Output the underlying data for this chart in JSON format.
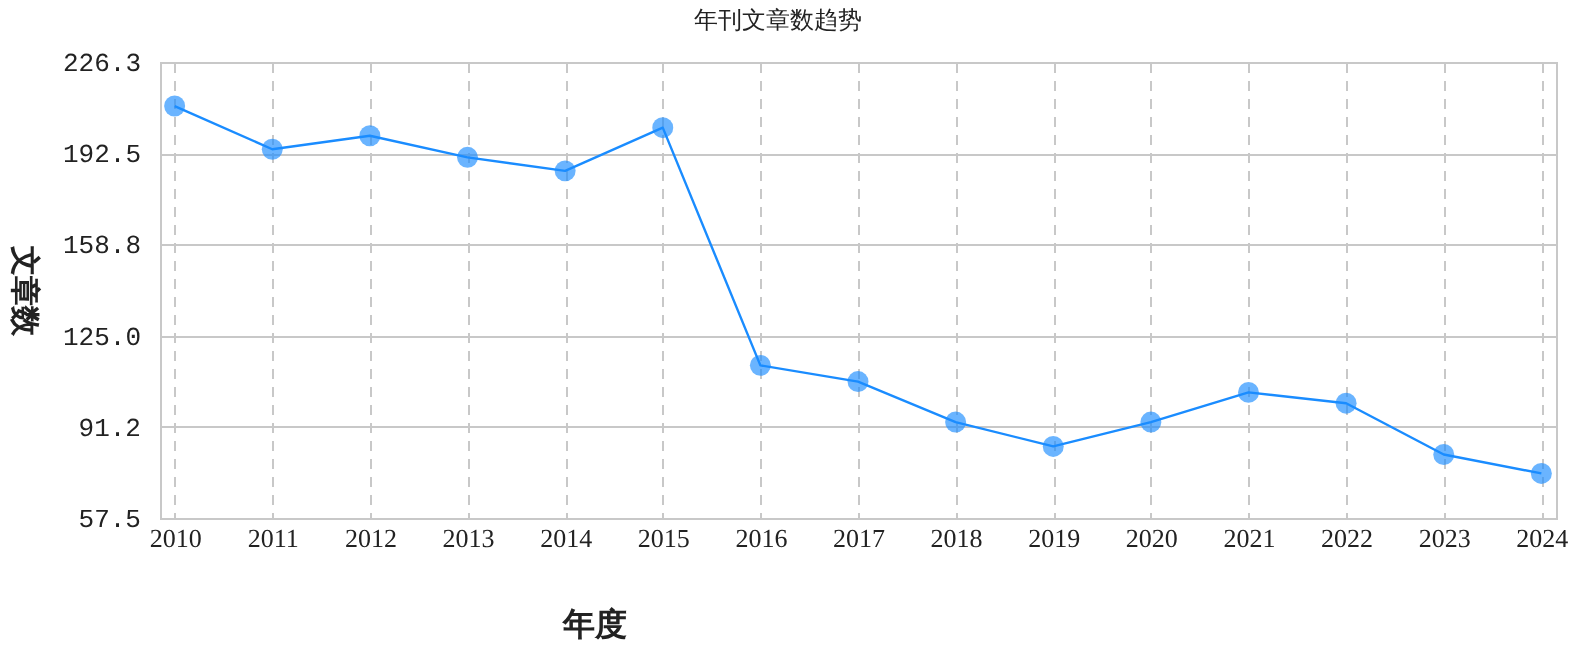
{
  "chart_data": {
    "type": "line",
    "title": "年刊文章数趋势",
    "xlabel": "年度",
    "ylabel": "文章数",
    "categories": [
      "2010",
      "2011",
      "2012",
      "2013",
      "2014",
      "2015",
      "2016",
      "2017",
      "2018",
      "2019",
      "2020",
      "2021",
      "2022",
      "2023",
      "2024"
    ],
    "series": [
      {
        "color": "#1a8cff",
        "values": [
          210,
          194,
          199,
          191,
          186,
          202,
          114,
          108,
          93,
          84,
          93,
          104,
          100,
          81,
          74
        ]
      }
    ],
    "ylim": [
      57.5,
      226.3
    ],
    "yticks": [
      57.5,
      91.2,
      {
        "value": 125,
        "label": "125.0"
      },
      158.8,
      192.5,
      226.3
    ],
    "grid": true,
    "marker": "circle",
    "line_style": "solid"
  }
}
